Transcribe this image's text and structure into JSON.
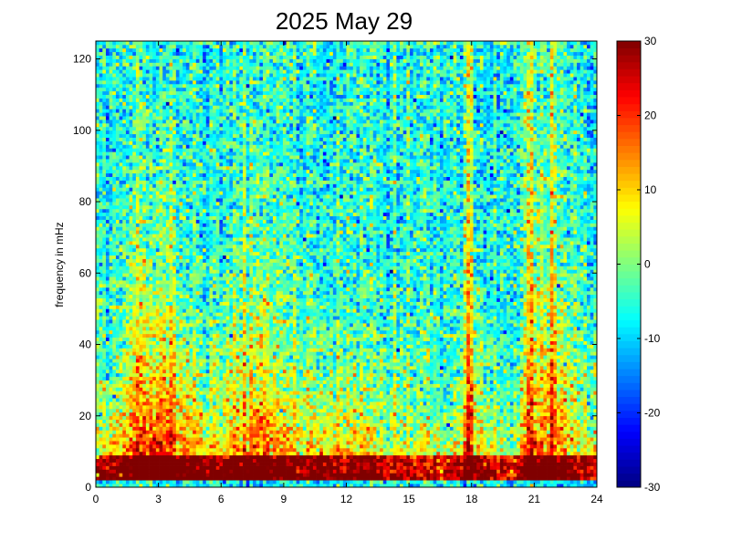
{
  "chart_data": {
    "type": "heatmap",
    "title": "2025 May 29",
    "xlabel": "",
    "ylabel": "frequency in mHz",
    "xlim": [
      0,
      24
    ],
    "ylim": [
      0,
      125
    ],
    "x_ticks": [
      0,
      3,
      6,
      9,
      12,
      15,
      18,
      21,
      24
    ],
    "x_tick_labels": [
      "0",
      "3",
      "6",
      "9",
      "12",
      "15",
      "18",
      "21",
      "24"
    ],
    "y_ticks": [
      0,
      20,
      40,
      60,
      80,
      100,
      120
    ],
    "y_tick_labels": [
      "0",
      "20",
      "40",
      "60",
      "80",
      "100",
      "120"
    ],
    "colorbar": {
      "range": [
        -30,
        30
      ],
      "colormap": "jet",
      "ticks": [
        -30,
        -20,
        -10,
        0,
        10,
        20,
        30
      ],
      "tick_labels": [
        "-30",
        "-20",
        "-10",
        "0",
        "10",
        "20",
        "30"
      ]
    },
    "grid": false,
    "time_bins": 150,
    "freq_bins": 125,
    "hourly_low_freq_level": [
      18,
      25,
      33,
      38,
      32,
      26,
      24,
      30,
      33,
      27,
      24,
      26,
      24,
      24,
      20,
      20,
      18,
      17,
      28,
      20,
      14,
      30,
      28,
      23,
      20
    ],
    "hourly_decay_mHz": [
      22,
      28,
      40,
      45,
      38,
      28,
      27,
      40,
      38,
      30,
      25,
      28,
      24,
      25,
      22,
      23,
      20,
      18,
      40,
      22,
      15,
      55,
      45,
      30,
      28
    ],
    "stripe_features": [
      {
        "time_h": 17.8,
        "width_h": 0.5,
        "level": 12
      },
      {
        "time_h": 20.7,
        "width_h": 0.5,
        "level": 10
      },
      {
        "time_h": 21.9,
        "width_h": 0.35,
        "level": 9
      }
    ]
  }
}
